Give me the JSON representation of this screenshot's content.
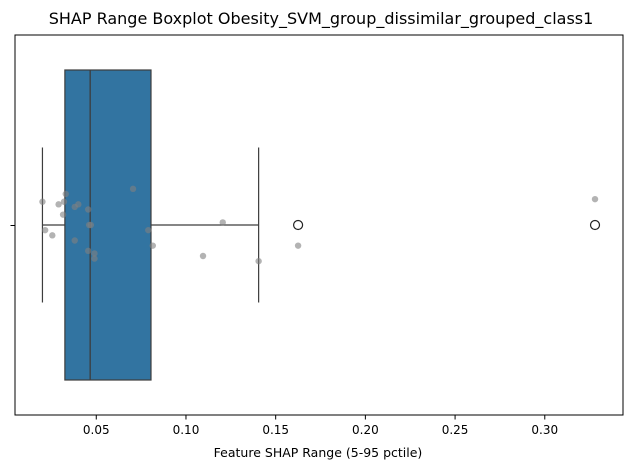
{
  "chart_data": {
    "type": "boxplot",
    "title": "SHAP Range Boxplot Obesity_SVM_group_dissimilar_grouped_class1",
    "xlabel": "Feature SHAP Range (5-95 pctile)",
    "ylabel": "",
    "xlim": [
      0.0047,
      0.3436
    ],
    "x_ticks": [
      0.05,
      0.1,
      0.15,
      0.2,
      0.25,
      0.3
    ],
    "x_tick_labels": [
      "0.05",
      "0.10",
      "0.15",
      "0.20",
      "0.25",
      "0.30"
    ],
    "grid": false,
    "box": {
      "color": "#3274a1",
      "q1": 0.0325,
      "median": 0.0466,
      "q3": 0.0805,
      "whisker_low": 0.02,
      "whisker_high": 0.1405,
      "outliers": [
        0.1625,
        0.328
      ]
    },
    "points": {
      "color": "#808080",
      "x": [
        0.02,
        0.0215,
        0.0255,
        0.029,
        0.0315,
        0.032,
        0.033,
        0.038,
        0.038,
        0.04,
        0.0455,
        0.0455,
        0.046,
        0.047,
        0.049,
        0.049,
        0.0705,
        0.079,
        0.0815,
        0.1095,
        0.1205,
        0.1405,
        0.1625,
        0.328
      ],
      "jitter": [
        -0.09,
        0.02,
        0.04,
        -0.08,
        -0.04,
        -0.09,
        -0.12,
        0.06,
        -0.07,
        -0.08,
        0.1,
        -0.06,
        0.0,
        0.0,
        0.11,
        0.13,
        -0.14,
        0.02,
        0.08,
        0.12,
        -0.01,
        0.14,
        0.08,
        -0.1
      ]
    }
  }
}
